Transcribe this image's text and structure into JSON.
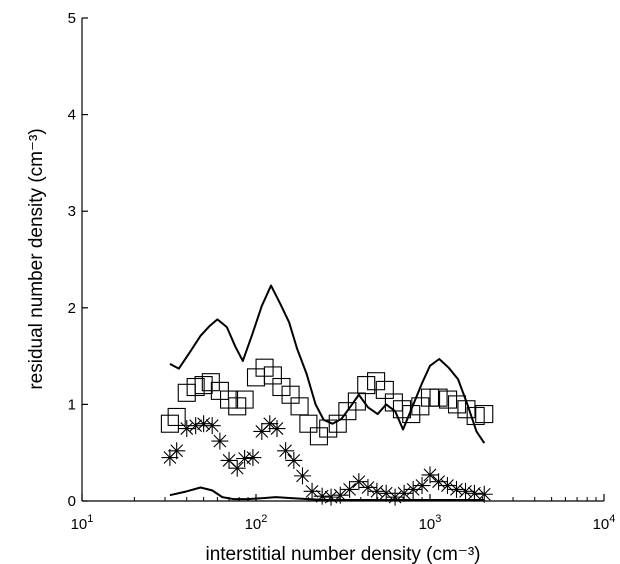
{
  "chart_data": {
    "type": "scatter",
    "title": "",
    "xlabel": "interstitial number density (cm⁻³)",
    "ylabel": "residual number density (cm⁻³)",
    "xscale": "log",
    "xlim": [
      10,
      10000
    ],
    "ylim": [
      0,
      5
    ],
    "grid": false,
    "legend": "none",
    "x_ticks": [
      {
        "value": 10,
        "base": "10",
        "exp": "1"
      },
      {
        "value": 100,
        "base": "10",
        "exp": "2"
      },
      {
        "value": 1000,
        "base": "10",
        "exp": "3"
      },
      {
        "value": 10000,
        "base": "10",
        "exp": "4"
      }
    ],
    "y_ticks": [
      {
        "value": 0,
        "label": "0"
      },
      {
        "value": 1,
        "label": "1"
      },
      {
        "value": 2,
        "label": "2"
      },
      {
        "value": 3,
        "label": "3"
      },
      {
        "value": 4,
        "label": "4"
      },
      {
        "value": 5,
        "label": "5"
      }
    ],
    "series": [
      {
        "marker": "line",
        "color": "#000000",
        "x": [
          32,
          36,
          42,
          48,
          54,
          60,
          68,
          76,
          84,
          95,
          108,
          122,
          138,
          155,
          172,
          195,
          220,
          245,
          275,
          310,
          350,
          390,
          440,
          500,
          560,
          630,
          700,
          790,
          900,
          1000,
          1130,
          1280,
          1450,
          1640,
          1850,
          2050
        ],
        "y": [
          1.42,
          1.37,
          1.55,
          1.71,
          1.81,
          1.88,
          1.8,
          1.6,
          1.45,
          1.72,
          2.02,
          2.23,
          2.04,
          1.85,
          1.58,
          1.32,
          1.0,
          0.84,
          0.8,
          0.85,
          0.98,
          1.1,
          0.97,
          0.9,
          1.0,
          0.93,
          0.74,
          0.97,
          1.22,
          1.4,
          1.47,
          1.38,
          1.26,
          1.0,
          0.72,
          0.6
        ]
      },
      {
        "marker": "square",
        "color": "#000000",
        "x": [
          32,
          35,
          40,
          45,
          50,
          55,
          62,
          70,
          78,
          86,
          100,
          112,
          125,
          140,
          158,
          178,
          200,
          230,
          260,
          295,
          335,
          380,
          430,
          490,
          550,
          620,
          690,
          780,
          880,
          1000,
          1120,
          1270,
          1430,
          1620,
          1830,
          2050
        ],
        "y": [
          0.8,
          0.87,
          1.12,
          1.18,
          1.2,
          1.23,
          1.14,
          1.05,
          0.98,
          1.05,
          1.28,
          1.38,
          1.3,
          1.18,
          1.1,
          0.98,
          0.8,
          0.67,
          0.75,
          0.8,
          0.93,
          1.03,
          1.2,
          1.24,
          1.15,
          1.02,
          0.95,
          0.9,
          0.98,
          1.07,
          1.07,
          1.05,
          1.0,
          0.95,
          0.88,
          0.9
        ]
      },
      {
        "marker": "asterisk",
        "color": "#000000",
        "x": [
          32,
          35,
          40,
          45,
          50,
          56,
          62,
          70,
          78,
          86,
          96,
          108,
          120,
          132,
          148,
          165,
          185,
          210,
          240,
          270,
          305,
          345,
          390,
          440,
          495,
          560,
          630,
          710,
          800,
          900,
          1000,
          1120,
          1260,
          1420,
          1600,
          1800,
          2050
        ],
        "y": [
          0.45,
          0.52,
          0.75,
          0.78,
          0.8,
          0.78,
          0.62,
          0.42,
          0.34,
          0.44,
          0.45,
          0.72,
          0.8,
          0.75,
          0.52,
          0.42,
          0.26,
          0.1,
          0.05,
          0.04,
          0.06,
          0.12,
          0.2,
          0.14,
          0.1,
          0.08,
          0.04,
          0.08,
          0.12,
          0.16,
          0.27,
          0.2,
          0.16,
          0.12,
          0.1,
          0.08,
          0.07
        ]
      },
      {
        "marker": "line",
        "color": "#000000",
        "x": [
          32,
          40,
          48,
          56,
          64,
          74,
          90,
          110,
          130,
          160,
          200,
          250,
          300,
          400,
          600,
          900,
          1300,
          1700,
          2050
        ],
        "y": [
          0.06,
          0.1,
          0.14,
          0.11,
          0.04,
          0.02,
          0.02,
          0.03,
          0.04,
          0.03,
          0.02,
          0.01,
          0.01,
          0.01,
          0.01,
          0.01,
          0.01,
          0.01,
          0.01
        ]
      }
    ]
  }
}
